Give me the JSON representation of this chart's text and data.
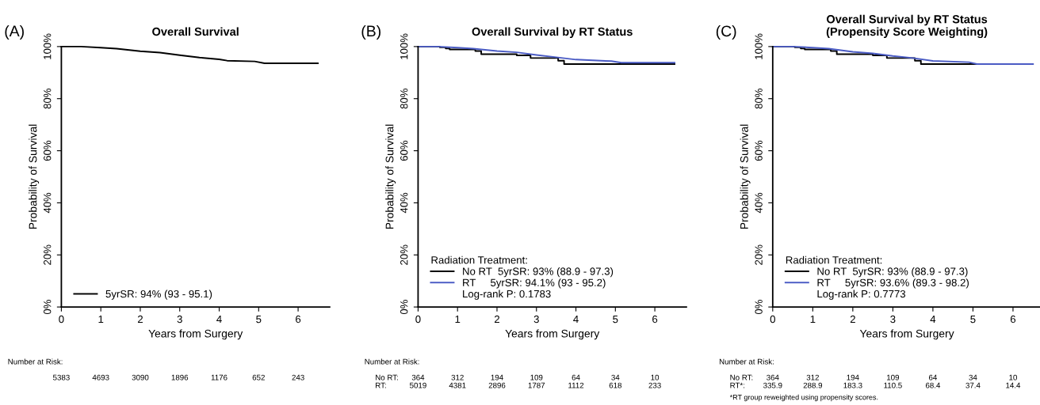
{
  "chart_data": [
    {
      "type": "line",
      "title": "Overall Survival",
      "xlabel": "Years from Surgery",
      "ylabel": "Probability of Survival",
      "xlim": [
        0,
        6.8
      ],
      "xticks": [
        0,
        1,
        2,
        3,
        4,
        5,
        6
      ],
      "ylim": [
        0,
        100
      ],
      "yticks": [
        {
          "value": 0,
          "label": "0%"
        },
        {
          "value": 20,
          "label": "20%"
        },
        {
          "value": 40,
          "label": "40%"
        },
        {
          "value": 60,
          "label": "60%"
        },
        {
          "value": 80,
          "label": "80%"
        },
        {
          "value": 100,
          "label": "100%"
        }
      ],
      "legend": "bottom left",
      "grid": false,
      "series": [
        {
          "name": "5yrSR: 94% (93 - 95.1)",
          "color": "#000000",
          "x": [
            0,
            0.5,
            1,
            1.4,
            2,
            2.5,
            3,
            3.5,
            4,
            4.2,
            4.9,
            5.15,
            6.5
          ],
          "values": [
            100,
            100,
            99.6,
            99.2,
            98.2,
            97.7,
            96.7,
            95.8,
            95.1,
            94.6,
            94.3,
            93.6,
            93.6
          ]
        }
      ],
      "annotations": [
        "(A)",
        "Number at Risk:",
        "5383",
        "4693",
        "3090",
        "1896",
        "1176",
        "652",
        "243"
      ]
    },
    {
      "type": "line",
      "title": "Overall Survival by RT Status",
      "xlabel": "Years from Surgery",
      "ylabel": "Probability of Survival",
      "xlim": [
        0,
        6.8
      ],
      "xticks": [
        0,
        1,
        2,
        3,
        4,
        5,
        6
      ],
      "ylim": [
        0,
        100
      ],
      "yticks": [
        {
          "value": 0,
          "label": "0%"
        },
        {
          "value": 20,
          "label": "20%"
        },
        {
          "value": 40,
          "label": "40%"
        },
        {
          "value": 60,
          "label": "60%"
        },
        {
          "value": 80,
          "label": "80%"
        },
        {
          "value": 100,
          "label": "100%"
        }
      ],
      "legend": "bottom left",
      "legend_title": "Radiation Treatment:",
      "grid": false,
      "series": [
        {
          "name": "No RT  5yrSR: 93% (88.9 - 97.3)",
          "type": "step",
          "color": "#000000",
          "x": [
            0,
            0.55,
            0.7,
            0.8,
            1.45,
            1.6,
            2.5,
            2.85,
            3.55,
            3.7,
            6.5
          ],
          "values": [
            100,
            99.7,
            99.3,
            98.9,
            98.3,
            97.1,
            96.6,
            95.6,
            94.6,
            93.3,
            93.3
          ]
        },
        {
          "name": "RT     5yrSR: 94.1% (93 - 95.2)",
          "color": "#4a5bc4",
          "x": [
            0,
            0.5,
            1,
            1.4,
            2,
            2.5,
            3,
            3.5,
            4,
            4.9,
            5.15,
            6.5
          ],
          "values": [
            100,
            100,
            99.6,
            99.2,
            98.3,
            97.8,
            96.8,
            95.9,
            95.0,
            94.4,
            93.8,
            93.8
          ]
        }
      ],
      "annotations": [
        "(B)",
        "Number at Risk:",
        "No RT:",
        "364",
        "312",
        "194",
        "109",
        "64",
        "34",
        "10",
        "RT:",
        "5019",
        "4381",
        "2896",
        "1787",
        "1112",
        "618",
        "233",
        "Log-rank P: 0.1783"
      ]
    },
    {
      "type": "line",
      "title": "Overall Survival by RT Status\n(Propensity Score Weighting)",
      "xlabel": "Years from Surgery",
      "ylabel": "Probability of Survival",
      "xlim": [
        0,
        6.7
      ],
      "xticks": [
        0,
        1,
        2,
        3,
        4,
        5,
        6
      ],
      "ylim": [
        0,
        100
      ],
      "yticks": [
        {
          "value": 0,
          "label": "0%"
        },
        {
          "value": 20,
          "label": "20%"
        },
        {
          "value": 40,
          "label": "40%"
        },
        {
          "value": 60,
          "label": "60%"
        },
        {
          "value": 80,
          "label": "80%"
        },
        {
          "value": 100,
          "label": "100%"
        }
      ],
      "legend": "bottom left",
      "legend_title": "Radiation Treatment:",
      "grid": false,
      "series": [
        {
          "name": "No RT  5yrSR: 93% (88.9 - 97.3)",
          "type": "step",
          "color": "#000000",
          "x": [
            0,
            0.55,
            0.7,
            0.8,
            1.45,
            1.6,
            2.5,
            2.85,
            3.55,
            3.7,
            5.1
          ],
          "values": [
            100,
            99.7,
            99.3,
            98.9,
            98.3,
            97.1,
            96.6,
            95.6,
            94.6,
            93.3,
            93.3
          ]
        },
        {
          "name": "RT     5yrSR: 93.6% (89.3 - 98.2)",
          "color": "#4a5bc4",
          "x": [
            0,
            0.5,
            1,
            1.4,
            2,
            2.5,
            3,
            3.5,
            4,
            4.9,
            5.1,
            6.5
          ],
          "values": [
            100,
            100,
            99.6,
            99.2,
            98.0,
            97.4,
            96.4,
            95.6,
            94.5,
            94.0,
            93.3,
            93.3
          ]
        }
      ],
      "annotations": [
        "(C)",
        "Number at Risk:",
        "No RT:",
        "364",
        "312",
        "194",
        "109",
        "64",
        "34",
        "10",
        "RT*:",
        "335.9",
        "288.9",
        "183.3",
        "110.5",
        "68.4",
        "37.4",
        "14.4",
        "Log-rank P: 0.7773",
        "*RT group reweighted using propensity scores."
      ]
    }
  ]
}
